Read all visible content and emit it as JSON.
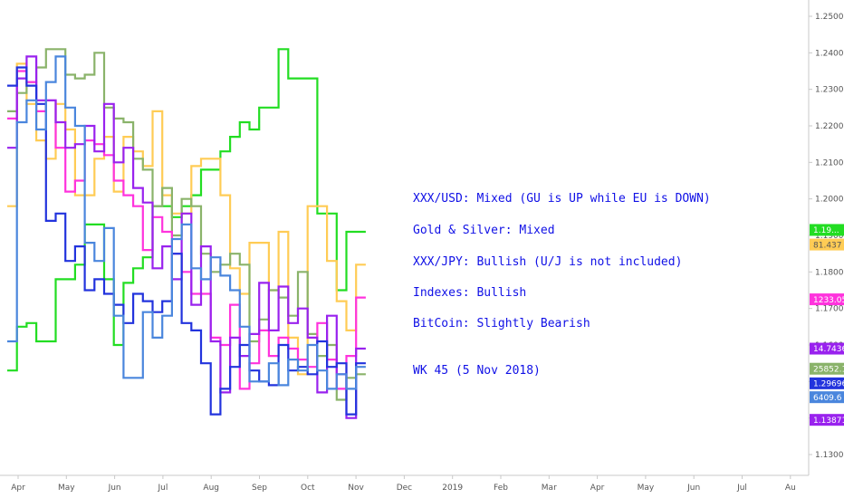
{
  "chart_data": {
    "type": "line",
    "x_labels": [
      "Apr",
      "May",
      "Jun",
      "Jul",
      "Aug",
      "Sep",
      "Oct",
      "Nov",
      "Dec",
      "2019",
      "Feb",
      "Mar",
      "Apr",
      "May",
      "Jun",
      "Jul",
      "Au"
    ],
    "y_ticks": [
      "1.25000",
      "1.24000",
      "1.23000",
      "1.22000",
      "1.21000",
      "1.20000",
      "1.19000",
      "1.18000",
      "1.17000",
      "1.16000",
      "1.15000",
      "1.14000",
      "1.13000"
    ],
    "ylim": [
      1.125,
      1.255
    ],
    "grid": false,
    "series": [
      {
        "color": "#22dd22",
        "values": [
          1.153,
          1.165,
          1.166,
          1.161,
          1.161,
          1.178,
          1.178,
          1.182,
          1.193,
          1.193,
          1.178,
          1.16,
          1.177,
          1.181,
          1.184,
          1.198,
          1.198,
          1.195,
          1.198,
          1.201,
          1.208,
          1.208,
          1.213,
          1.217,
          1.221,
          1.219,
          1.225,
          1.225,
          1.241,
          1.233,
          1.233,
          1.233,
          1.196,
          1.196,
          1.175,
          1.191,
          1.191
        ]
      },
      {
        "color": "#ffcc55",
        "values": [
          1.198,
          1.237,
          1.226,
          1.216,
          1.211,
          1.226,
          1.219,
          1.201,
          1.201,
          1.211,
          1.217,
          1.202,
          1.217,
          1.213,
          1.209,
          1.224,
          1.201,
          1.196,
          1.196,
          1.209,
          1.211,
          1.211,
          1.201,
          1.181,
          1.174,
          1.188,
          1.188,
          1.175,
          1.191,
          1.162,
          1.152,
          1.198,
          1.198,
          1.183,
          1.172,
          1.164,
          1.182
        ]
      },
      {
        "color": "#8ab36a",
        "values": [
          1.224,
          1.229,
          1.232,
          1.236,
          1.241,
          1.241,
          1.234,
          1.233,
          1.234,
          1.24,
          1.225,
          1.222,
          1.221,
          1.211,
          1.208,
          1.198,
          1.203,
          1.19,
          1.2,
          1.198,
          1.185,
          1.18,
          1.182,
          1.185,
          1.182,
          1.161,
          1.167,
          1.175,
          1.173,
          1.168,
          1.18,
          1.163,
          1.157,
          1.16,
          1.145,
          1.151,
          1.152
        ]
      },
      {
        "color": "#ff33dd",
        "values": [
          1.222,
          1.235,
          1.232,
          1.224,
          1.227,
          1.214,
          1.202,
          1.205,
          1.216,
          1.215,
          1.212,
          1.205,
          1.201,
          1.198,
          1.186,
          1.195,
          1.191,
          1.185,
          1.18,
          1.174,
          1.174,
          1.162,
          1.16,
          1.171,
          1.148,
          1.155,
          1.164,
          1.157,
          1.162,
          1.159,
          1.156,
          1.154,
          1.166,
          1.156,
          1.148,
          1.157,
          1.173
        ]
      },
      {
        "color": "#9922ee",
        "values": [
          1.214,
          1.233,
          1.239,
          1.227,
          1.227,
          1.221,
          1.214,
          1.215,
          1.22,
          1.213,
          1.226,
          1.21,
          1.214,
          1.203,
          1.199,
          1.181,
          1.187,
          1.178,
          1.196,
          1.171,
          1.187,
          1.161,
          1.147,
          1.162,
          1.157,
          1.163,
          1.177,
          1.164,
          1.176,
          1.166,
          1.17,
          1.162,
          1.147,
          1.168,
          1.152,
          1.14,
          1.159
        ]
      },
      {
        "color": "#2233dd",
        "values": [
          1.231,
          1.236,
          1.231,
          1.226,
          1.194,
          1.196,
          1.183,
          1.187,
          1.175,
          1.178,
          1.174,
          1.171,
          1.166,
          1.174,
          1.172,
          1.169,
          1.172,
          1.185,
          1.166,
          1.164,
          1.155,
          1.141,
          1.148,
          1.154,
          1.16,
          1.153,
          1.15,
          1.149,
          1.16,
          1.153,
          1.154,
          1.152,
          1.161,
          1.154,
          1.155,
          1.141,
          1.155
        ]
      },
      {
        "color": "#4a86dd",
        "values": [
          1.161,
          1.221,
          1.227,
          1.219,
          1.232,
          1.239,
          1.225,
          1.22,
          1.188,
          1.183,
          1.192,
          1.168,
          1.151,
          1.151,
          1.169,
          1.162,
          1.168,
          1.189,
          1.193,
          1.181,
          1.178,
          1.184,
          1.179,
          1.175,
          1.165,
          1.15,
          1.15,
          1.155,
          1.149,
          1.156,
          1.153,
          1.16,
          1.153,
          1.148,
          1.152,
          1.148,
          1.154
        ]
      }
    ],
    "badges": [
      {
        "label": "1.19...",
        "value": 1.1915,
        "bg": "#22dd22",
        "fg": "#ffffff"
      },
      {
        "label": "81.437",
        "value": 1.1875,
        "bg": "#ffcc55",
        "fg": "#555555"
      },
      {
        "label": "1233.050",
        "value": 1.1725,
        "bg": "#ff33dd",
        "fg": "#ffffff"
      },
      {
        "label": "14.74362",
        "value": 1.159,
        "bg": "#9922ee",
        "fg": "#ffffff"
      },
      {
        "label": "25852.1",
        "value": 1.1535,
        "bg": "#8ab36a",
        "fg": "#ffffff"
      },
      {
        "label": "1.29696",
        "value": 1.1495,
        "bg": "#2233dd",
        "fg": "#ffffff"
      },
      {
        "label": "6409.6",
        "value": 1.1457,
        "bg": "#4a86dd",
        "fg": "#ffffff"
      },
      {
        "label": "1.13871",
        "value": 1.1395,
        "bg": "#9922ee",
        "fg": "#ffffff"
      }
    ]
  },
  "notes": [
    "XXX/USD: Mixed (GU is UP while EU is DOWN)",
    "Gold & Silver: Mixed",
    "XXX/JPY: Bullish (U/J is not included)",
    "Indexes: Bullish",
    "BitCoin: Slightly Bearish",
    "WK 45 (5 Nov 2018)"
  ]
}
